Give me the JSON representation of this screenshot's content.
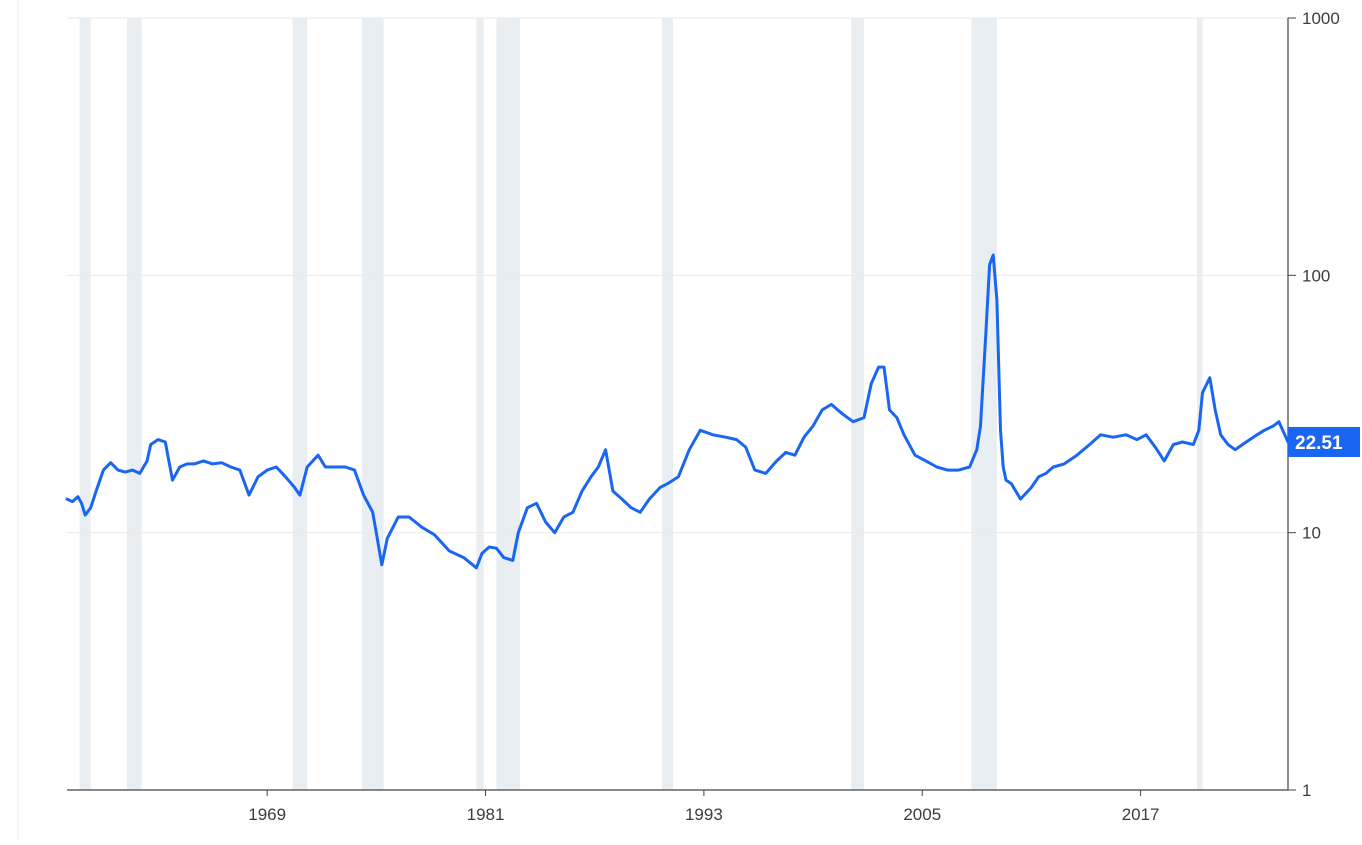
{
  "chart_data": {
    "type": "line",
    "title": "",
    "xlabel": "",
    "ylabel": "",
    "y_scale": "log",
    "xlim": [
      1958.0,
      2025.1
    ],
    "ylim": [
      1,
      1000
    ],
    "grid": "horizontal",
    "legend": "none",
    "x_ticks": [
      {
        "label": "1969",
        "year": 1969
      },
      {
        "label": "1981",
        "year": 1981
      },
      {
        "label": "1993",
        "year": 1993
      },
      {
        "label": "2005",
        "year": 2005
      },
      {
        "label": "2017",
        "year": 2017
      }
    ],
    "y_ticks": [
      {
        "label": "1000",
        "value": 1000
      },
      {
        "label": "100",
        "value": 100
      },
      {
        "label": "10",
        "value": 10
      },
      {
        "label": "1",
        "value": 1
      }
    ],
    "recessions": [
      [
        1958.7,
        1959.3
      ],
      [
        1961.3,
        1962.1
      ],
      [
        1970.4,
        1971.2
      ],
      [
        1974.2,
        1975.4
      ],
      [
        1980.5,
        1980.9
      ],
      [
        1981.6,
        1982.9
      ],
      [
        1990.7,
        1991.3
      ],
      [
        2001.1,
        2001.8
      ],
      [
        2007.7,
        2009.1
      ],
      [
        2020.1,
        2020.4
      ]
    ],
    "latest_value": "22.51",
    "colors": {
      "line": "#1a66f2",
      "recession": "#e8eef2",
      "grid": "#eaeaea",
      "axis": "#444444",
      "badge": "#1a66f2"
    },
    "series": [
      {
        "x": [
          1958.0,
          1958.3,
          1958.6,
          1958.8,
          1959.0,
          1959.3,
          1959.6,
          1960.0,
          1960.4,
          1960.8,
          1961.2,
          1961.6,
          1962.0,
          1962.4,
          1962.6,
          1963.0,
          1963.4,
          1963.8,
          1964.2,
          1964.6,
          1965.0,
          1965.5,
          1966.0,
          1966.5,
          1967.0,
          1967.5,
          1968.0,
          1968.5,
          1969.0,
          1969.5,
          1970.0,
          1970.5,
          1970.8,
          1971.2,
          1971.8,
          1972.2,
          1972.8,
          1973.3,
          1973.8,
          1974.3,
          1974.8,
          1975.0,
          1975.3,
          1975.6,
          1976.2,
          1976.8,
          1977.5,
          1978.2,
          1979.0,
          1979.8,
          1980.5,
          1980.8,
          1981.2,
          1981.6,
          1982.0,
          1982.5,
          1982.8,
          1983.3,
          1983.8,
          1984.3,
          1984.8,
          1985.3,
          1985.8,
          1986.3,
          1986.8,
          1987.2,
          1987.6,
          1988.0,
          1988.5,
          1989.0,
          1989.5,
          1990.0,
          1990.6,
          1991.0,
          1991.6,
          1992.2,
          1992.8,
          1993.5,
          1994.2,
          1994.8,
          1995.3,
          1995.8,
          1996.4,
          1997.0,
          1997.5,
          1998.0,
          1998.5,
          1999.0,
          1999.5,
          2000.0,
          2000.6,
          2001.2,
          2001.8,
          2002.2,
          2002.6,
          2002.9,
          2003.2,
          2003.6,
          2004.0,
          2004.6,
          2005.2,
          2005.8,
          2006.4,
          2007.0,
          2007.6,
          2008.0,
          2008.2,
          2008.5,
          2008.7,
          2008.9,
          2009.1,
          2009.3,
          2009.45,
          2009.6,
          2009.9,
          2010.4,
          2011.0,
          2011.4,
          2011.8,
          2012.2,
          2012.8,
          2013.5,
          2014.2,
          2014.8,
          2015.5,
          2016.2,
          2016.8,
          2017.3,
          2017.8,
          2018.3,
          2018.8,
          2019.3,
          2019.9,
          2020.2,
          2020.4,
          2020.8,
          2021.1,
          2021.4,
          2021.8,
          2022.2,
          2022.6,
          2023.0,
          2023.4,
          2023.8,
          2024.3,
          2024.6,
          2025.1
        ],
        "values": [
          13.5,
          13.2,
          13.8,
          13.0,
          11.7,
          12.5,
          14.5,
          17.5,
          18.7,
          17.5,
          17.2,
          17.5,
          17.0,
          19.0,
          22.0,
          23.0,
          22.5,
          16.0,
          18.0,
          18.5,
          18.5,
          19.0,
          18.5,
          18.7,
          18.0,
          17.5,
          14.0,
          16.5,
          17.5,
          18.0,
          16.5,
          15.0,
          14.0,
          18.0,
          20.0,
          18.0,
          18.0,
          18.0,
          17.5,
          14.0,
          12.0,
          10.0,
          7.5,
          9.5,
          11.5,
          11.5,
          10.5,
          9.8,
          8.5,
          8.0,
          7.3,
          8.3,
          8.8,
          8.7,
          8.0,
          7.8,
          10.0,
          12.5,
          13.0,
          11.0,
          10.0,
          11.5,
          12.0,
          14.5,
          16.5,
          18.0,
          21.0,
          14.5,
          13.5,
          12.5,
          12.0,
          13.5,
          15.0,
          15.5,
          16.5,
          21.0,
          25.0,
          24.0,
          23.5,
          23.0,
          21.5,
          17.5,
          17.0,
          19.0,
          20.5,
          20.0,
          23.5,
          26.0,
          30.0,
          31.5,
          29.0,
          27.0,
          28.0,
          38.0,
          44.0,
          44.0,
          30.0,
          28.0,
          24.0,
          20.0,
          19.0,
          18.0,
          17.5,
          17.5,
          18.0,
          21.0,
          26.0,
          60.0,
          110.0,
          120.0,
          80.0,
          25.0,
          18.0,
          16.0,
          15.5,
          13.5,
          15.0,
          16.5,
          17.0,
          18.0,
          18.5,
          20.0,
          22.0,
          24.0,
          23.5,
          24.0,
          23.0,
          24.0,
          21.5,
          19.0,
          22.0,
          22.5,
          22.0,
          25.0,
          35.0,
          40.0,
          30.0,
          24.0,
          22.0,
          21.0,
          22.0,
          23.0,
          24.0,
          25.0,
          26.0,
          27.0,
          22.51
        ]
      }
    ]
  }
}
